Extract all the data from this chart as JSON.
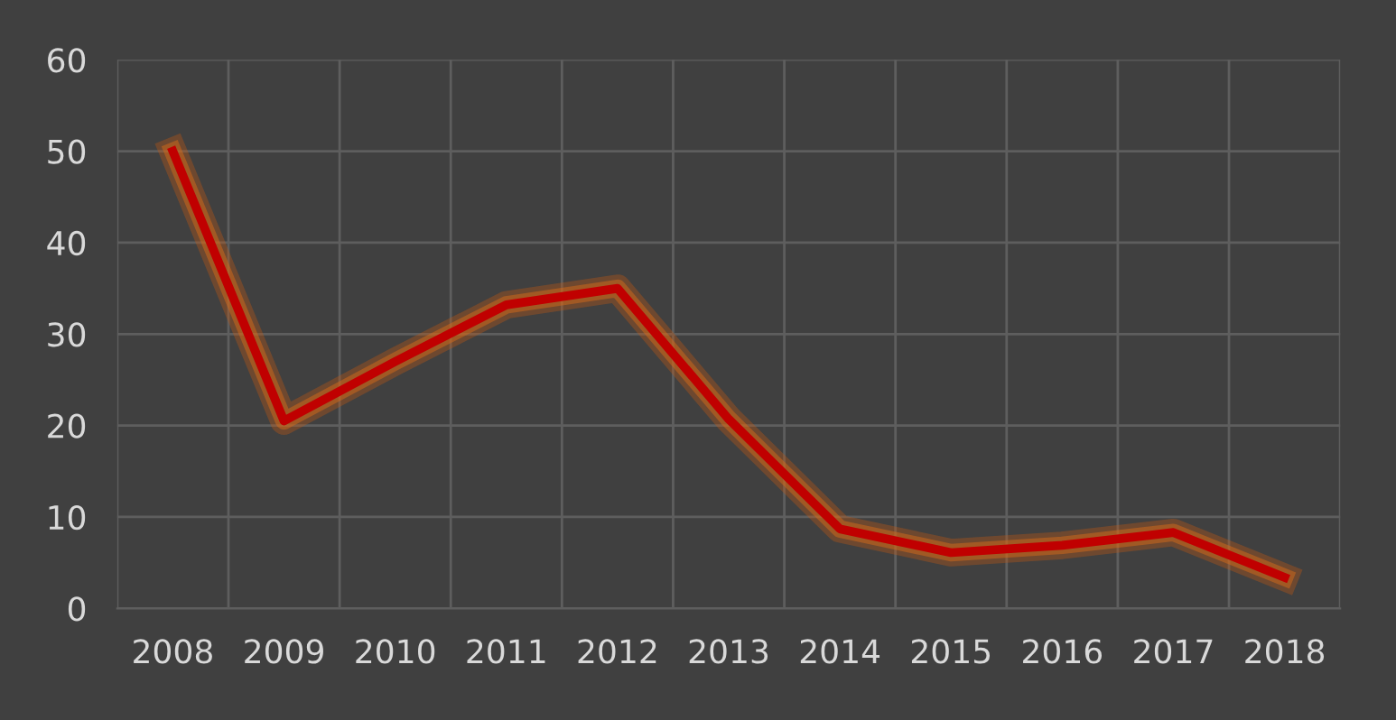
{
  "chart_data": {
    "type": "line",
    "categories": [
      "2008",
      "2009",
      "2010",
      "2011",
      "2012",
      "2013",
      "2014",
      "2015",
      "2016",
      "2017",
      "2018"
    ],
    "series": [
      {
        "color": "#c00000",
        "values": [
          50,
          20.5,
          27,
          33.2,
          35,
          20.7,
          8.7,
          6.1,
          6.9,
          8.3,
          3.4
        ]
      }
    ],
    "ylim": [
      0,
      60
    ],
    "yticks": [
      0,
      10,
      20,
      30,
      40,
      50,
      60
    ],
    "grid": true,
    "marker": "none",
    "line_style": "solid",
    "legend": false
  }
}
